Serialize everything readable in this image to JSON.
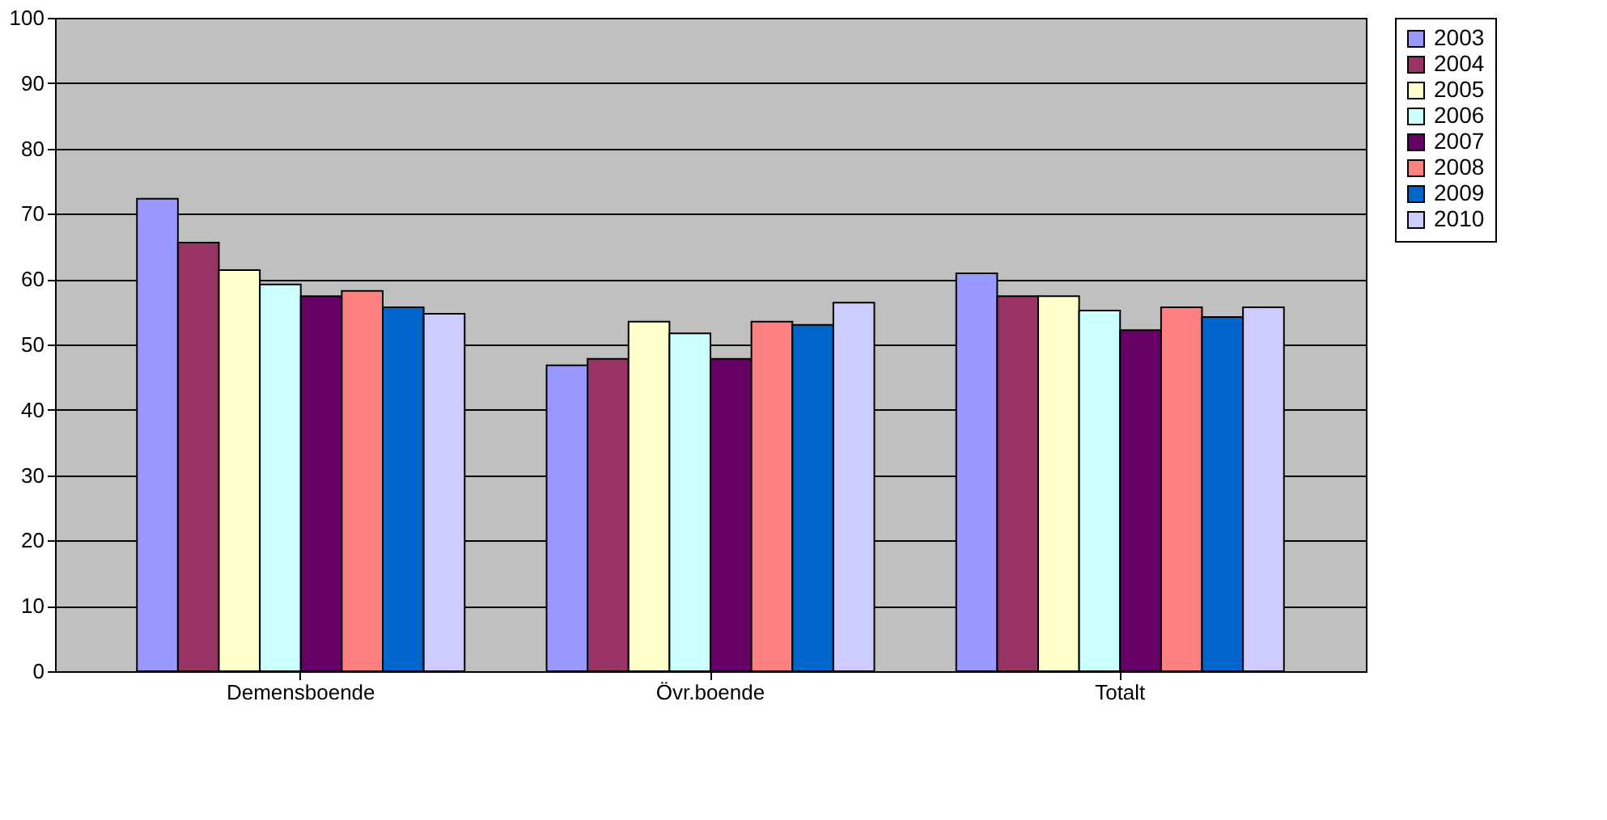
{
  "chart_data": {
    "type": "bar",
    "categories": [
      "Demensboende",
      "Övr.boende",
      "Totalt"
    ],
    "series": [
      {
        "name": "2003",
        "color": "#9999ff",
        "values": [
          72.3,
          46.8,
          60.9
        ]
      },
      {
        "name": "2004",
        "color": "#993366",
        "values": [
          65.6,
          47.8,
          57.4
        ]
      },
      {
        "name": "2005",
        "color": "#ffffcc",
        "values": [
          61.4,
          53.5,
          57.4
        ]
      },
      {
        "name": "2006",
        "color": "#ccffff",
        "values": [
          59.2,
          51.7,
          55.2
        ]
      },
      {
        "name": "2007",
        "color": "#660066",
        "values": [
          57.4,
          47.8,
          52.2
        ]
      },
      {
        "name": "2008",
        "color": "#ff8080",
        "values": [
          58.2,
          53.5,
          55.7
        ]
      },
      {
        "name": "2009",
        "color": "#0066cc",
        "values": [
          55.7,
          53,
          54.2
        ]
      },
      {
        "name": "2010",
        "color": "#ccccff",
        "values": [
          54.7,
          56.4,
          55.7
        ]
      }
    ],
    "ylim": [
      0,
      100
    ],
    "yticks": [
      0,
      10,
      20,
      30,
      40,
      50,
      60,
      70,
      80,
      90,
      100
    ],
    "grid": "y",
    "legend": "right"
  }
}
